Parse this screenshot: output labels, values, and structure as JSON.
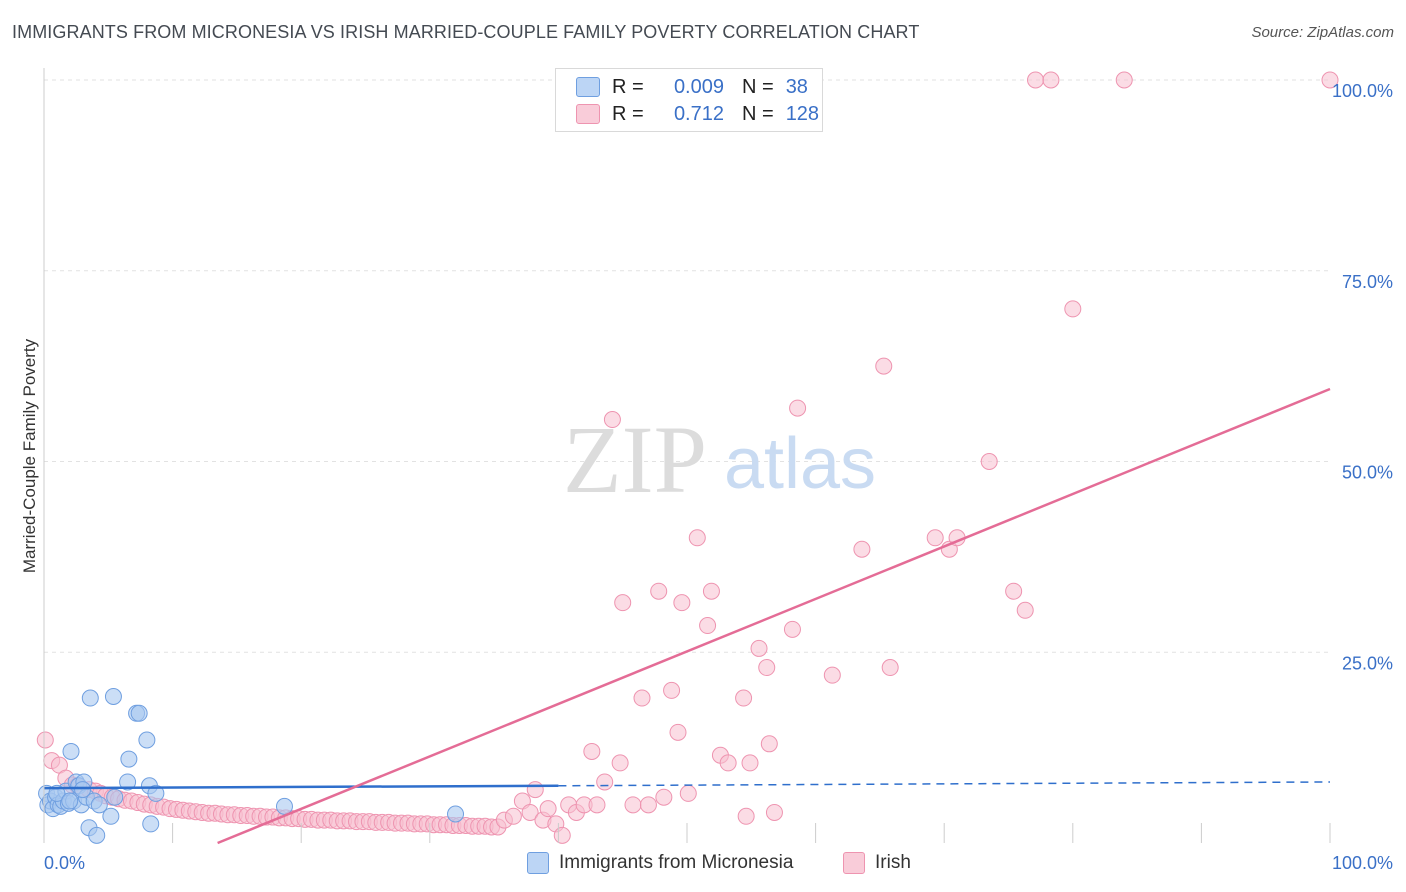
{
  "title": "IMMIGRANTS FROM MICRONESIA VS IRISH MARRIED-COUPLE FAMILY POVERTY CORRELATION CHART",
  "source": "Source: ZipAtlas.com",
  "watermark": {
    "zip": "ZIP",
    "atlas": "atlas"
  },
  "colors": {
    "blue_fill": "#a9c8f0",
    "blue_stroke": "#6f9fe0",
    "blue_line": "#2f6fcc",
    "pink_fill": "#f7bfd0",
    "pink_stroke": "#ee94b0",
    "pink_line": "#e46c96",
    "axis_text": "#3a70c7",
    "grid": "#e2e2e2"
  },
  "legend": {
    "rows": [
      {
        "r_label": "R =",
        "r_value": "0.009",
        "n_label": "N =",
        "n_value": "38"
      },
      {
        "r_label": "R =",
        "r_value": "0.712",
        "n_label": "N =",
        "n_value": "128"
      }
    ]
  },
  "bottom_legend": {
    "series1": "Immigrants from Micronesia",
    "series2": "Irish"
  },
  "chart_data": {
    "type": "scatter",
    "title": "IMMIGRANTS FROM MICRONESIA VS IRISH MARRIED-COUPLE FAMILY POVERTY CORRELATION CHART",
    "xlabel": "",
    "ylabel": "Married-Couple Family Poverty",
    "xlim": [
      0,
      100
    ],
    "ylim": [
      0,
      100
    ],
    "x_tick_labels": [
      "0.0%",
      "100.0%"
    ],
    "y_tick_labels": [
      "25.0%",
      "50.0%",
      "75.0%",
      "100.0%"
    ],
    "y_ticks": [
      25,
      50,
      75,
      100
    ],
    "grid": true,
    "legend_position": "top-center",
    "series": [
      {
        "name": "Immigrants from Micronesia",
        "trend": {
          "x": [
            0,
            40
          ],
          "y": [
            7.2,
            7.5
          ],
          "dashed_to_x": 100,
          "dashed_y": 8.0
        },
        "points": [
          [
            0.2,
            6.5
          ],
          [
            0.3,
            5.0
          ],
          [
            0.5,
            5.5
          ],
          [
            0.7,
            4.5
          ],
          [
            0.9,
            6.0
          ],
          [
            1.1,
            5.0
          ],
          [
            1.3,
            4.8
          ],
          [
            1.5,
            5.5
          ],
          [
            1.7,
            6.8
          ],
          [
            1.9,
            5.2
          ],
          [
            2.1,
            12.0
          ],
          [
            2.3,
            5.5
          ],
          [
            2.5,
            8.0
          ],
          [
            2.7,
            7.5
          ],
          [
            2.9,
            5.0
          ],
          [
            3.1,
            8.0
          ],
          [
            3.3,
            6.0
          ],
          [
            3.5,
            2.0
          ],
          [
            3.6,
            19.0
          ],
          [
            3.9,
            5.5
          ],
          [
            4.1,
            1.0
          ],
          [
            4.3,
            5.0
          ],
          [
            5.2,
            3.5
          ],
          [
            5.5,
            6.0
          ],
          [
            5.4,
            19.2
          ],
          [
            6.5,
            8.0
          ],
          [
            6.6,
            11.0
          ],
          [
            7.2,
            17.0
          ],
          [
            7.4,
            17.0
          ],
          [
            8.0,
            13.5
          ],
          [
            8.2,
            7.5
          ],
          [
            8.3,
            2.5
          ],
          [
            8.7,
            6.5
          ],
          [
            18.7,
            4.8
          ],
          [
            32.0,
            3.8
          ],
          [
            1.0,
            6.5
          ],
          [
            2.0,
            5.5
          ],
          [
            3.0,
            7.0
          ]
        ]
      },
      {
        "name": "Irish",
        "trend": {
          "x": [
            13.5,
            100
          ],
          "y": [
            0,
            59.5
          ]
        },
        "points": [
          [
            0.1,
            13.5
          ],
          [
            0.6,
            10.8
          ],
          [
            1.2,
            10.2
          ],
          [
            1.7,
            8.5
          ],
          [
            2.2,
            7.6
          ],
          [
            2.6,
            7.5
          ],
          [
            3.0,
            7.0
          ],
          [
            3.5,
            7.0
          ],
          [
            4.0,
            6.8
          ],
          [
            4.4,
            6.5
          ],
          [
            4.8,
            6.2
          ],
          [
            5.3,
            6.0
          ],
          [
            5.8,
            5.8
          ],
          [
            6.3,
            5.6
          ],
          [
            6.8,
            5.5
          ],
          [
            7.3,
            5.3
          ],
          [
            7.8,
            5.1
          ],
          [
            8.3,
            5.0
          ],
          [
            8.8,
            4.8
          ],
          [
            9.3,
            4.7
          ],
          [
            9.8,
            4.5
          ],
          [
            10.3,
            4.4
          ],
          [
            10.8,
            4.3
          ],
          [
            11.3,
            4.2
          ],
          [
            11.8,
            4.1
          ],
          [
            12.3,
            4.0
          ],
          [
            12.8,
            3.9
          ],
          [
            13.3,
            3.9
          ],
          [
            13.8,
            3.8
          ],
          [
            14.3,
            3.7
          ],
          [
            14.8,
            3.7
          ],
          [
            15.3,
            3.6
          ],
          [
            15.8,
            3.6
          ],
          [
            16.3,
            3.5
          ],
          [
            16.8,
            3.5
          ],
          [
            17.3,
            3.4
          ],
          [
            17.8,
            3.4
          ],
          [
            18.3,
            3.3
          ],
          [
            18.8,
            3.3
          ],
          [
            19.3,
            3.2
          ],
          [
            19.8,
            3.2
          ],
          [
            20.3,
            3.1
          ],
          [
            20.8,
            3.1
          ],
          [
            21.3,
            3.0
          ],
          [
            21.8,
            3.0
          ],
          [
            22.3,
            3.0
          ],
          [
            22.8,
            2.9
          ],
          [
            23.3,
            2.9
          ],
          [
            23.8,
            2.9
          ],
          [
            24.3,
            2.8
          ],
          [
            24.8,
            2.8
          ],
          [
            25.3,
            2.8
          ],
          [
            25.8,
            2.7
          ],
          [
            26.3,
            2.7
          ],
          [
            26.8,
            2.7
          ],
          [
            27.3,
            2.6
          ],
          [
            27.8,
            2.6
          ],
          [
            28.3,
            2.6
          ],
          [
            28.8,
            2.5
          ],
          [
            29.3,
            2.5
          ],
          [
            29.8,
            2.5
          ],
          [
            30.3,
            2.4
          ],
          [
            30.8,
            2.4
          ],
          [
            31.3,
            2.4
          ],
          [
            31.8,
            2.3
          ],
          [
            32.3,
            2.3
          ],
          [
            32.8,
            2.3
          ],
          [
            33.3,
            2.2
          ],
          [
            33.8,
            2.2
          ],
          [
            34.3,
            2.2
          ],
          [
            34.8,
            2.1
          ],
          [
            35.3,
            2.1
          ],
          [
            35.8,
            3.0
          ],
          [
            36.5,
            3.5
          ],
          [
            37.2,
            5.5
          ],
          [
            37.8,
            4.0
          ],
          [
            38.2,
            7.0
          ],
          [
            38.8,
            3.0
          ],
          [
            39.2,
            4.5
          ],
          [
            39.8,
            2.5
          ],
          [
            40.3,
            1.0
          ],
          [
            40.8,
            5.0
          ],
          [
            41.4,
            4.0
          ],
          [
            42.0,
            5.0
          ],
          [
            42.6,
            12.0
          ],
          [
            43.0,
            5.0
          ],
          [
            43.6,
            8.0
          ],
          [
            44.8,
            10.5
          ],
          [
            45.0,
            31.5
          ],
          [
            44.2,
            55.5
          ],
          [
            45.8,
            5.0
          ],
          [
            46.5,
            19.0
          ],
          [
            47.0,
            5.0
          ],
          [
            47.8,
            33.0
          ],
          [
            48.2,
            6.0
          ],
          [
            48.8,
            20.0
          ],
          [
            49.3,
            14.5
          ],
          [
            49.6,
            31.5
          ],
          [
            50.1,
            6.5
          ],
          [
            50.8,
            40.0
          ],
          [
            51.6,
            28.5
          ],
          [
            51.9,
            33.0
          ],
          [
            52.6,
            11.5
          ],
          [
            53.2,
            10.5
          ],
          [
            54.4,
            19.0
          ],
          [
            54.6,
            3.5
          ],
          [
            54.9,
            10.5
          ],
          [
            55.6,
            25.5
          ],
          [
            56.2,
            23.0
          ],
          [
            56.4,
            13.0
          ],
          [
            56.8,
            4.0
          ],
          [
            58.2,
            28.0
          ],
          [
            58.6,
            57.0
          ],
          [
            61.3,
            22.0
          ],
          [
            63.6,
            38.5
          ],
          [
            65.3,
            62.5
          ],
          [
            65.8,
            23.0
          ],
          [
            69.3,
            40.0
          ],
          [
            70.4,
            38.5
          ],
          [
            71.0,
            40.0
          ],
          [
            73.5,
            50.0
          ],
          [
            75.4,
            33.0
          ],
          [
            76.3,
            30.5
          ],
          [
            77.1,
            100
          ],
          [
            78.3,
            100
          ],
          [
            80.0,
            70.0
          ],
          [
            84.0,
            100
          ],
          [
            100,
            100
          ]
        ]
      }
    ]
  }
}
